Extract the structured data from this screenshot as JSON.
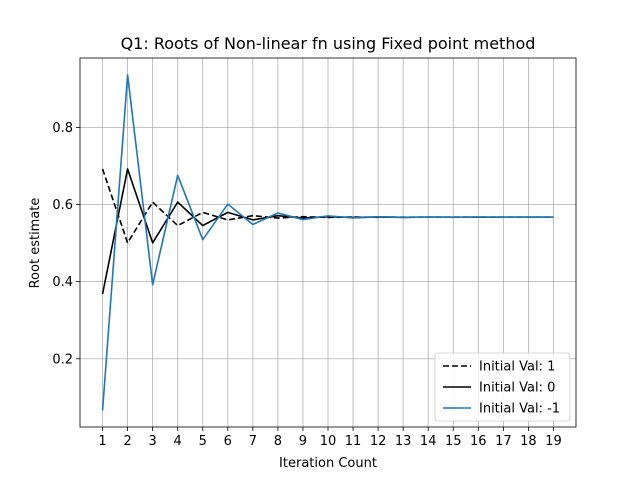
{
  "chart_data": {
    "type": "line",
    "title": "Q1: Roots of Non-linear fn using Fixed point method",
    "xlabel": "Iteration Count",
    "ylabel": "Root estimate",
    "x": [
      1,
      2,
      3,
      4,
      5,
      6,
      7,
      8,
      9,
      10,
      11,
      12,
      13,
      14,
      15,
      16,
      17,
      18,
      19
    ],
    "xticks": [
      1,
      2,
      3,
      4,
      5,
      6,
      7,
      8,
      9,
      10,
      11,
      12,
      13,
      14,
      15,
      16,
      17,
      18,
      19
    ],
    "yticks": [
      0.2,
      0.4,
      0.6,
      0.8
    ],
    "xlim": [
      0.1,
      19.9
    ],
    "ylim": [
      0.023,
      0.98
    ],
    "grid": true,
    "legend_position": "lower-right",
    "series": [
      {
        "name": "Initial Val: 1",
        "color": "#000000",
        "dash": "dashed",
        "values": [
          0.6922,
          0.5006,
          0.6062,
          0.5454,
          0.5796,
          0.5601,
          0.5711,
          0.5649,
          0.5684,
          0.5664,
          0.5675,
          0.5669,
          0.5673,
          0.5671,
          0.5672,
          0.5671,
          0.5672,
          0.5671,
          0.5671
        ]
      },
      {
        "name": "Initial Val: 0",
        "color": "#000000",
        "dash": "solid",
        "values": [
          0.3679,
          0.6922,
          0.5006,
          0.6062,
          0.5454,
          0.5796,
          0.5601,
          0.5711,
          0.5649,
          0.5684,
          0.5664,
          0.5675,
          0.5669,
          0.5673,
          0.5671,
          0.5672,
          0.5671,
          0.5672,
          0.5671
        ]
      },
      {
        "name": "Initial Val: -1",
        "color": "#1f77b4",
        "dash": "solid",
        "values": [
          0.066,
          0.9362,
          0.3921,
          0.6757,
          0.5088,
          0.6012,
          0.5482,
          0.578,
          0.561,
          0.5706,
          0.5651,
          0.5682,
          0.5665,
          0.5675,
          0.5669,
          0.5673,
          0.5671,
          0.5672,
          0.5671
        ]
      }
    ]
  }
}
